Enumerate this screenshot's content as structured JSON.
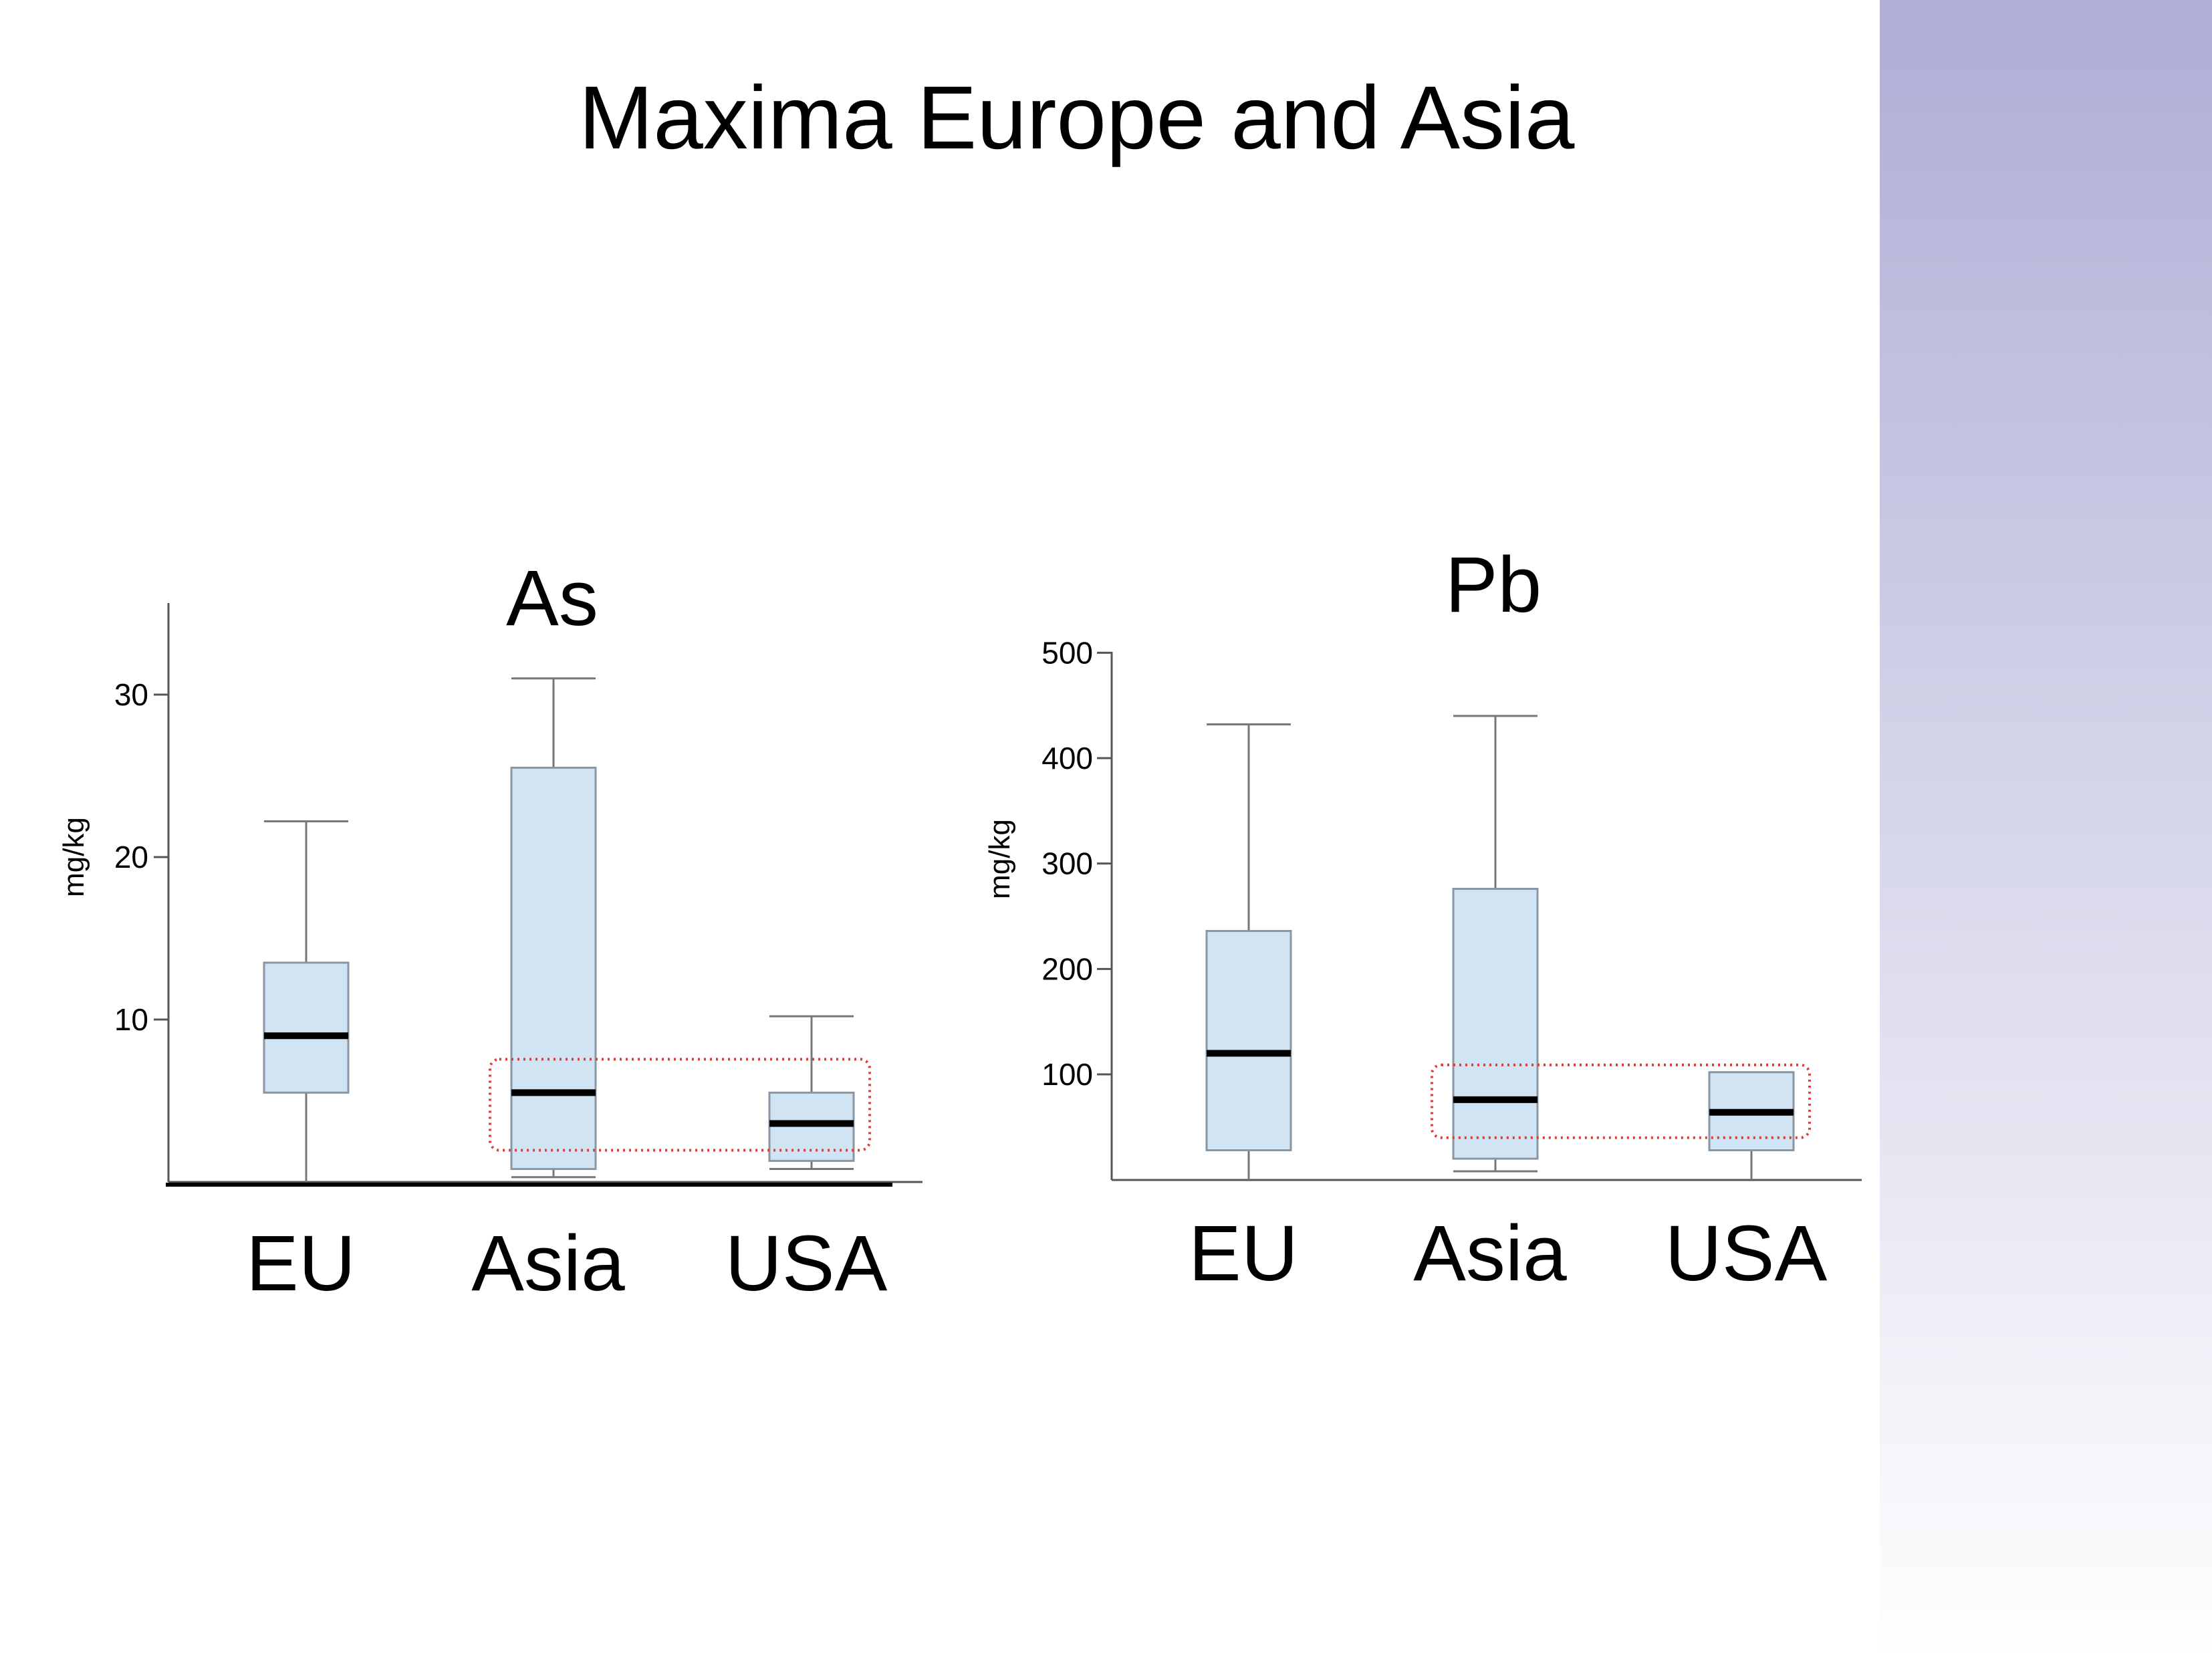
{
  "slide": {
    "title": "Maxima Europe and Asia",
    "background": "#ffffff",
    "side_band_top": "#aeaed6",
    "side_band_bottom": "#ffffff"
  },
  "chart_data": [
    {
      "type": "boxplot",
      "title": "As",
      "ylabel": "mg/kg",
      "ylim": [
        0,
        35
      ],
      "yticks": [
        10,
        20,
        30
      ],
      "categories": [
        "EU",
        "Asia",
        "USA"
      ],
      "boxes": [
        {
          "category": "EU",
          "min": 0,
          "q1": 5.5,
          "median": 9.0,
          "q3": 13.5,
          "max": 22.2
        },
        {
          "category": "Asia",
          "min": 0.3,
          "q1": 0.8,
          "median": 5.5,
          "q3": 25.5,
          "max": 31.0
        },
        {
          "category": "USA",
          "min": 0.8,
          "q1": 1.3,
          "median": 3.6,
          "q3": 5.5,
          "max": 10.2
        }
      ],
      "highlight": {
        "from": "Asia",
        "to": "USA",
        "style": "red dotted",
        "color": "#e53935"
      },
      "box_fill": "#d0e4f3",
      "box_stroke": "#8a96a3"
    },
    {
      "type": "boxplot",
      "title": "Pb",
      "ylabel": "mg/kg",
      "ylim": [
        0,
        500
      ],
      "yticks": [
        100,
        200,
        300,
        400,
        500
      ],
      "categories": [
        "EU",
        "Asia",
        "USA"
      ],
      "boxes": [
        {
          "category": "EU",
          "min": 0,
          "q1": 28,
          "median": 120,
          "q3": 236,
          "max": 432
        },
        {
          "category": "Asia",
          "min": 8,
          "q1": 20,
          "median": 76,
          "q3": 276,
          "max": 440
        },
        {
          "category": "USA",
          "min": 0,
          "q1": 28,
          "median": 64,
          "q3": 102,
          "max": 102
        }
      ],
      "highlight": {
        "from": "Asia",
        "to": "USA",
        "style": "red dotted",
        "color": "#e53935"
      },
      "box_fill": "#d0e4f3",
      "box_stroke": "#8a96a3"
    }
  ]
}
